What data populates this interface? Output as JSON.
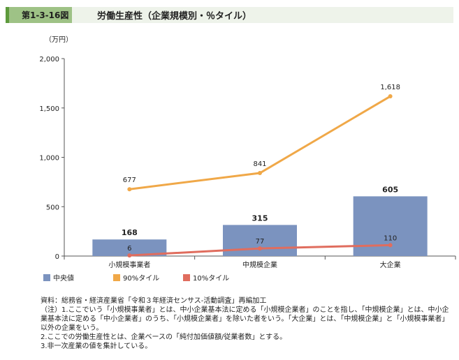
{
  "header": {
    "figure_number": "第1-3-16図",
    "title": "労働生産性（企業規模別・％タイル）"
  },
  "colors": {
    "median_bar": "#7b93bf",
    "p90_line": "#f0a848",
    "p10_line": "#e06d5e"
  },
  "chart_data": {
    "type": "bar",
    "unit_label": "（万円）",
    "categories": [
      "小規模事業者",
      "中規模企業",
      "大企業"
    ],
    "ylim": [
      0,
      2000
    ],
    "yticks": [
      0,
      500,
      1000,
      1500,
      2000
    ],
    "ytick_labels": [
      "0",
      "500",
      "1,000",
      "1,500",
      "2,000"
    ],
    "series": [
      {
        "name": "中央値",
        "kind": "bar",
        "values": [
          168,
          315,
          605
        ],
        "labels": [
          "168",
          "315",
          "605"
        ]
      },
      {
        "name": "90%タイル",
        "kind": "line",
        "values": [
          677,
          841,
          1618
        ],
        "labels": [
          "677",
          "841",
          "1,618"
        ]
      },
      {
        "name": "10%タイル",
        "kind": "line",
        "values": [
          6,
          77,
          110
        ],
        "labels": [
          "6",
          "77",
          "110"
        ]
      }
    ],
    "legend_position": "bottom"
  },
  "notes": {
    "source": "資料：総務省・経済産業省「令和３年経済センサス-活動調査」再編加工",
    "line1": "（注）1.ここでいう「小規模事業者」とは、中小企業基本法に定める「小規模企業者」のことを指し、「中規模企業」とは、中小企",
    "line2": "業基本法に定める「中小企業者」のうち、「小規模企業者」を除いた者をいう。「大企業」とは、「中規模企業」と「小規模事業者」",
    "line3": "以外の企業をいう。",
    "line4": "2.ここでの労働生産性とは、企業ベースの「純付加価値額/従業者数」とする。",
    "line5": "3.非一次産業の値を集計している。"
  }
}
